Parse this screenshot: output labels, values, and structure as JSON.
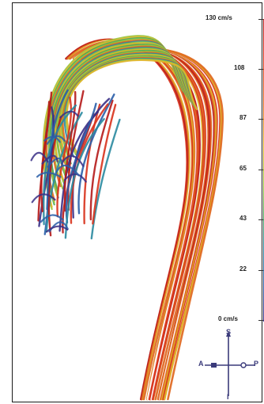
{
  "colorbar": {
    "ticks": [
      "130 cm/s",
      "108",
      "87",
      "65",
      "43",
      "22",
      "0 cm/s"
    ],
    "colors": [
      "#b51a1a",
      "#d8321c",
      "#e0681f",
      "#e0b52a",
      "#98c63c",
      "#4aa85a",
      "#2a8aa0",
      "#2a5ea8",
      "#3a2f86"
    ]
  },
  "orientation": {
    "top": "S",
    "left": "A",
    "right": "P",
    "bottom": "I"
  }
}
